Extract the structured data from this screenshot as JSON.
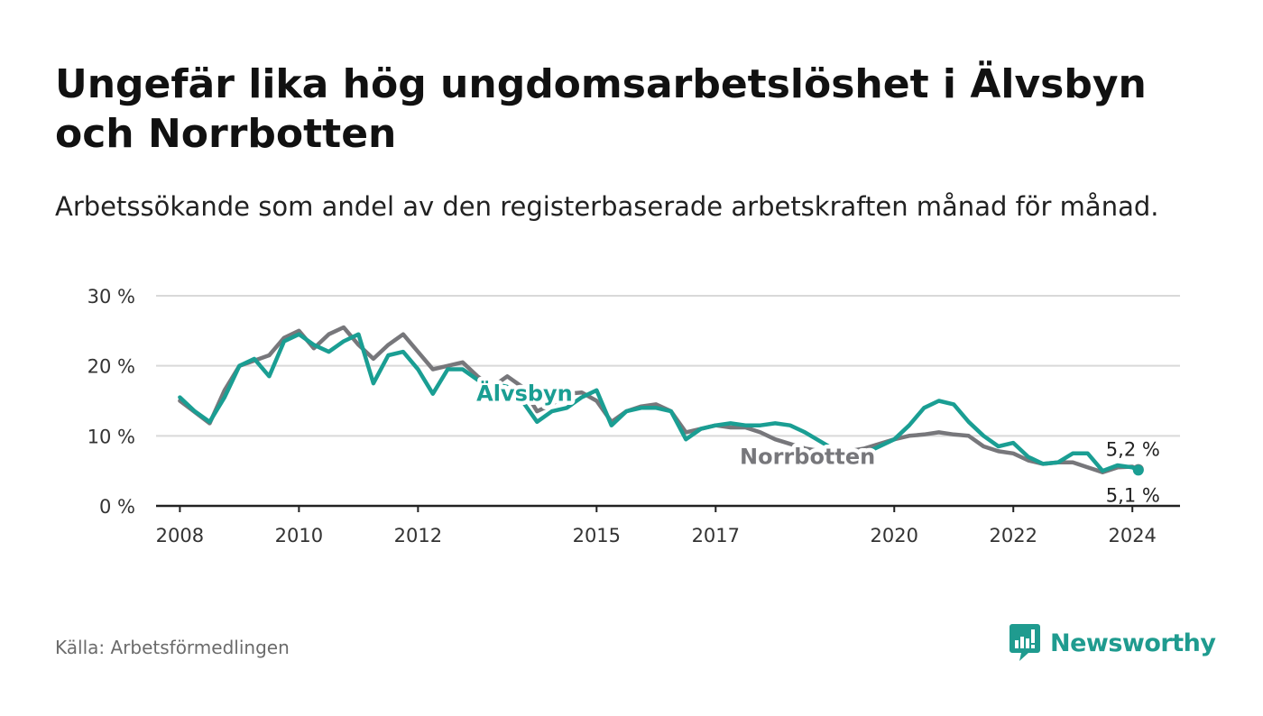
{
  "title": "Ungefär lika hög ungdomsarbetslöshet i Älvsbyn och Norrbotten",
  "subtitle": "Arbetssökande som andel av den registerbaserade arbetskraften månad för månad.",
  "source": "Källa: Arbetsförmedlingen",
  "brand": "Newsworthy",
  "colors": {
    "alvsbyn": "#1a9e93",
    "norrbotten": "#77777b",
    "grid": "#d9d9d9",
    "axis": "#222222",
    "brand": "#1f9b8f"
  },
  "chart_data": {
    "type": "line",
    "title": "Ungefär lika hög ungdomsarbetslöshet i Älvsbyn och Norrbotten",
    "xlabel": "",
    "ylabel": "",
    "xlim": [
      2007.6,
      2024.8
    ],
    "ylim": [
      0,
      30
    ],
    "y_ticks": [
      0,
      10,
      20,
      30
    ],
    "y_tick_labels": [
      "0 %",
      "10 %",
      "20 %",
      "30 %"
    ],
    "x_ticks": [
      2008,
      2010,
      2012,
      2015,
      2017,
      2020,
      2022,
      2024
    ],
    "x_tick_labels": [
      "2008",
      "2010",
      "2012",
      "2015",
      "2017",
      "2020",
      "2022",
      "2024"
    ],
    "grid": true,
    "series": [
      {
        "name": "Norrbotten",
        "label": "Norrbotten",
        "end_label": "5,2 %",
        "x": [
          2008.0,
          2008.5,
          2008.75,
          2009.0,
          2009.5,
          2009.75,
          2010.0,
          2010.25,
          2010.5,
          2010.75,
          2011.0,
          2011.25,
          2011.5,
          2011.75,
          2012.0,
          2012.25,
          2012.5,
          2012.75,
          2013.0,
          2013.25,
          2013.5,
          2013.75,
          2014.0,
          2014.25,
          2014.5,
          2014.75,
          2015.0,
          2015.25,
          2015.5,
          2015.75,
          2016.0,
          2016.25,
          2016.5,
          2016.75,
          2017.0,
          2017.25,
          2017.5,
          2017.75,
          2018.0,
          2018.5,
          2019.0,
          2019.5,
          2020.0,
          2020.25,
          2020.5,
          2020.75,
          2021.0,
          2021.25,
          2021.5,
          2021.75,
          2022.0,
          2022.25,
          2022.5,
          2022.75,
          2023.0,
          2023.25,
          2023.5,
          2023.75,
          2024.0,
          2024.1
        ],
        "values": [
          15.0,
          11.8,
          16.5,
          20.0,
          21.5,
          24.0,
          25.0,
          22.5,
          24.5,
          25.5,
          23.0,
          21.0,
          23.0,
          24.5,
          22.0,
          19.5,
          20.0,
          20.5,
          18.5,
          17.0,
          18.5,
          17.0,
          13.5,
          14.5,
          16.0,
          16.2,
          15.0,
          12.0,
          13.5,
          14.2,
          14.5,
          13.5,
          10.5,
          11.0,
          11.5,
          11.2,
          11.2,
          10.5,
          9.5,
          8.2,
          7.5,
          8.2,
          9.5,
          10.0,
          10.2,
          10.5,
          10.2,
          10.0,
          8.5,
          7.8,
          7.5,
          6.5,
          6.0,
          6.2,
          6.2,
          5.5,
          4.8,
          5.5,
          5.6,
          5.2
        ]
      },
      {
        "name": "Älvsbyn",
        "label": "Älvsbyn",
        "end_label": "5,1 %",
        "x": [
          2008.0,
          2008.25,
          2008.5,
          2008.75,
          2009.0,
          2009.25,
          2009.5,
          2009.75,
          2010.0,
          2010.25,
          2010.5,
          2010.75,
          2011.0,
          2011.25,
          2011.5,
          2011.75,
          2012.0,
          2012.25,
          2012.5,
          2012.75,
          2013.0,
          2013.25,
          2013.5,
          2013.75,
          2014.0,
          2014.25,
          2014.5,
          2014.75,
          2015.0,
          2015.25,
          2015.5,
          2015.75,
          2016.0,
          2016.25,
          2016.5,
          2016.75,
          2017.0,
          2017.25,
          2017.5,
          2017.75,
          2018.0,
          2018.25,
          2018.5,
          2019.0,
          2019.5,
          2020.0,
          2020.25,
          2020.5,
          2020.75,
          2021.0,
          2021.25,
          2021.5,
          2021.75,
          2022.0,
          2022.25,
          2022.5,
          2022.75,
          2023.0,
          2023.25,
          2023.5,
          2023.75,
          2024.0,
          2024.1
        ],
        "values": [
          15.5,
          13.5,
          12.0,
          15.5,
          20.0,
          21.0,
          18.5,
          23.5,
          24.5,
          23.0,
          22.0,
          23.5,
          24.5,
          17.5,
          21.5,
          22.0,
          19.5,
          16.0,
          19.5,
          19.5,
          18.0,
          17.5,
          17.0,
          15.0,
          12.0,
          13.5,
          14.0,
          15.5,
          16.5,
          11.5,
          13.5,
          14.0,
          14.0,
          13.5,
          9.5,
          11.0,
          11.5,
          11.8,
          11.5,
          11.5,
          11.8,
          11.5,
          10.5,
          8.0,
          7.5,
          9.5,
          11.5,
          14.0,
          15.0,
          14.5,
          12.0,
          10.0,
          8.5,
          9.0,
          7.0,
          6.0,
          6.2,
          7.5,
          7.5,
          5.0,
          5.8,
          5.5,
          5.1
        ]
      }
    ]
  }
}
